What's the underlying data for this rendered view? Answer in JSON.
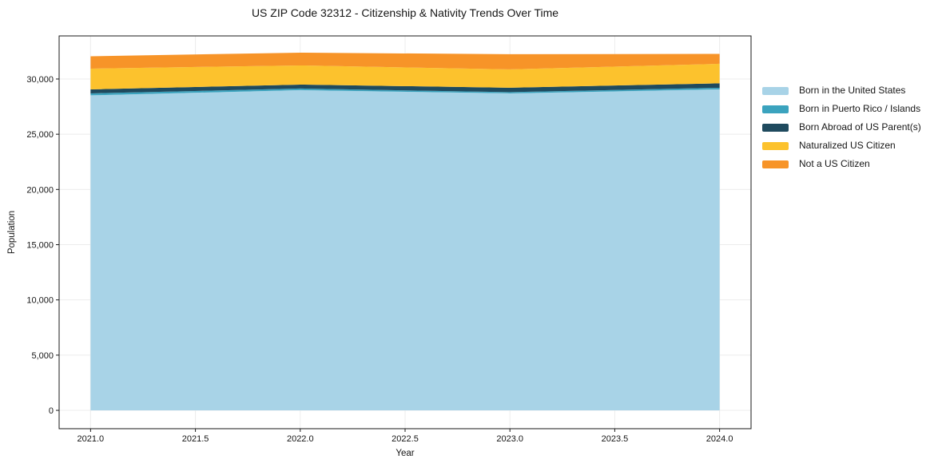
{
  "chart_data": {
    "type": "area",
    "stacked": true,
    "title": "US ZIP Code 32312 - Citizenship & Nativity Trends Over Time",
    "xlabel": "Year",
    "ylabel": "Population",
    "x": [
      2021,
      2022,
      2023,
      2024
    ],
    "series": [
      {
        "name": "Born in the United States",
        "color": "#A8D3E7",
        "values": [
          28520,
          28990,
          28700,
          29060
        ]
      },
      {
        "name": "Born in Puerto Rico / Islands",
        "color": "#3BA3BE",
        "values": [
          180,
          145,
          110,
          145
        ]
      },
      {
        "name": "Born Abroad of US Parent(s)",
        "color": "#1F4A5E",
        "values": [
          360,
          360,
          400,
          400
        ]
      },
      {
        "name": "Naturalized US Citizen",
        "color": "#FCC22D",
        "values": [
          1880,
          1735,
          1660,
          1770
        ]
      },
      {
        "name": "Not a US Citizen",
        "color": "#F79428",
        "values": [
          1120,
          1155,
          1375,
          900
        ]
      }
    ],
    "xlim": [
      2020.85,
      2024.15
    ],
    "ylim": [
      -1660,
      33900
    ],
    "x_ticks": {
      "values": [
        2021.0,
        2021.5,
        2022.0,
        2022.5,
        2023.0,
        2023.5,
        2024.0
      ],
      "labels": [
        "2021.0",
        "2021.5",
        "2022.0",
        "2022.5",
        "2023.0",
        "2023.5",
        "2024.0"
      ]
    },
    "y_ticks": {
      "values": [
        0,
        5000,
        10000,
        15000,
        20000,
        25000,
        30000
      ],
      "labels": [
        "0",
        "5,000",
        "10,000",
        "15,000",
        "20,000",
        "25,000",
        "30,000"
      ]
    },
    "grid": true,
    "legend_position": "right-outside",
    "colors": {
      "background": "#FFFFFF",
      "grid": "#ECECEC",
      "axis": "#1A1A1A",
      "tick_text": "#161616"
    }
  }
}
